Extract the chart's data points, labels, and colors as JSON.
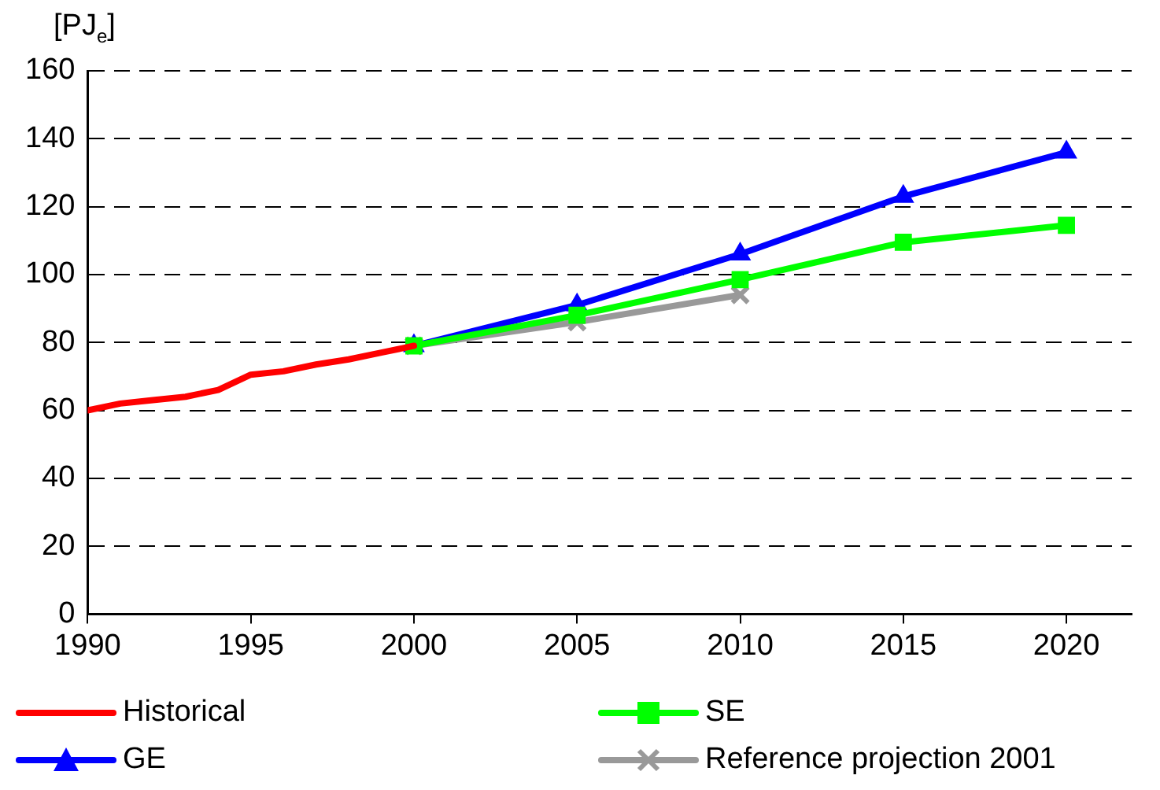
{
  "chart_data": {
    "type": "line",
    "ylabel": "[PJ$_{e}$]",
    "xlim": [
      1990,
      2022
    ],
    "xticks": [
      1990,
      1995,
      2000,
      2005,
      2010,
      2015,
      2020
    ],
    "ylim": [
      0,
      160
    ],
    "yticks": [
      0,
      20,
      40,
      60,
      80,
      100,
      120,
      140,
      160
    ],
    "grid": "y",
    "legend": "bottom",
    "series": [
      {
        "name": "Historical",
        "color": "#ff0000",
        "marker": "none",
        "x": [
          1990,
          1991,
          1992,
          1993,
          1994,
          1995,
          1996,
          1997,
          1998,
          1999,
          2000
        ],
        "values": [
          60,
          62,
          63,
          64,
          66,
          70.5,
          71.5,
          73.5,
          75,
          77,
          79
        ]
      },
      {
        "name": "SE",
        "color": "#00ff00",
        "marker": "square",
        "x": [
          2000,
          2005,
          2010,
          2015,
          2020
        ],
        "values": [
          79,
          88,
          98.5,
          109.5,
          114.5
        ]
      },
      {
        "name": "GE",
        "color": "#0000ff",
        "marker": "triangle",
        "x": [
          2000,
          2005,
          2010,
          2015,
          2020
        ],
        "values": [
          79,
          91,
          106,
          123,
          136
        ]
      },
      {
        "name": "Reference projection 2001",
        "color": "#999999",
        "marker": "cross",
        "x": [
          2000,
          2005,
          2010
        ],
        "values": [
          79,
          86,
          94
        ]
      }
    ]
  }
}
